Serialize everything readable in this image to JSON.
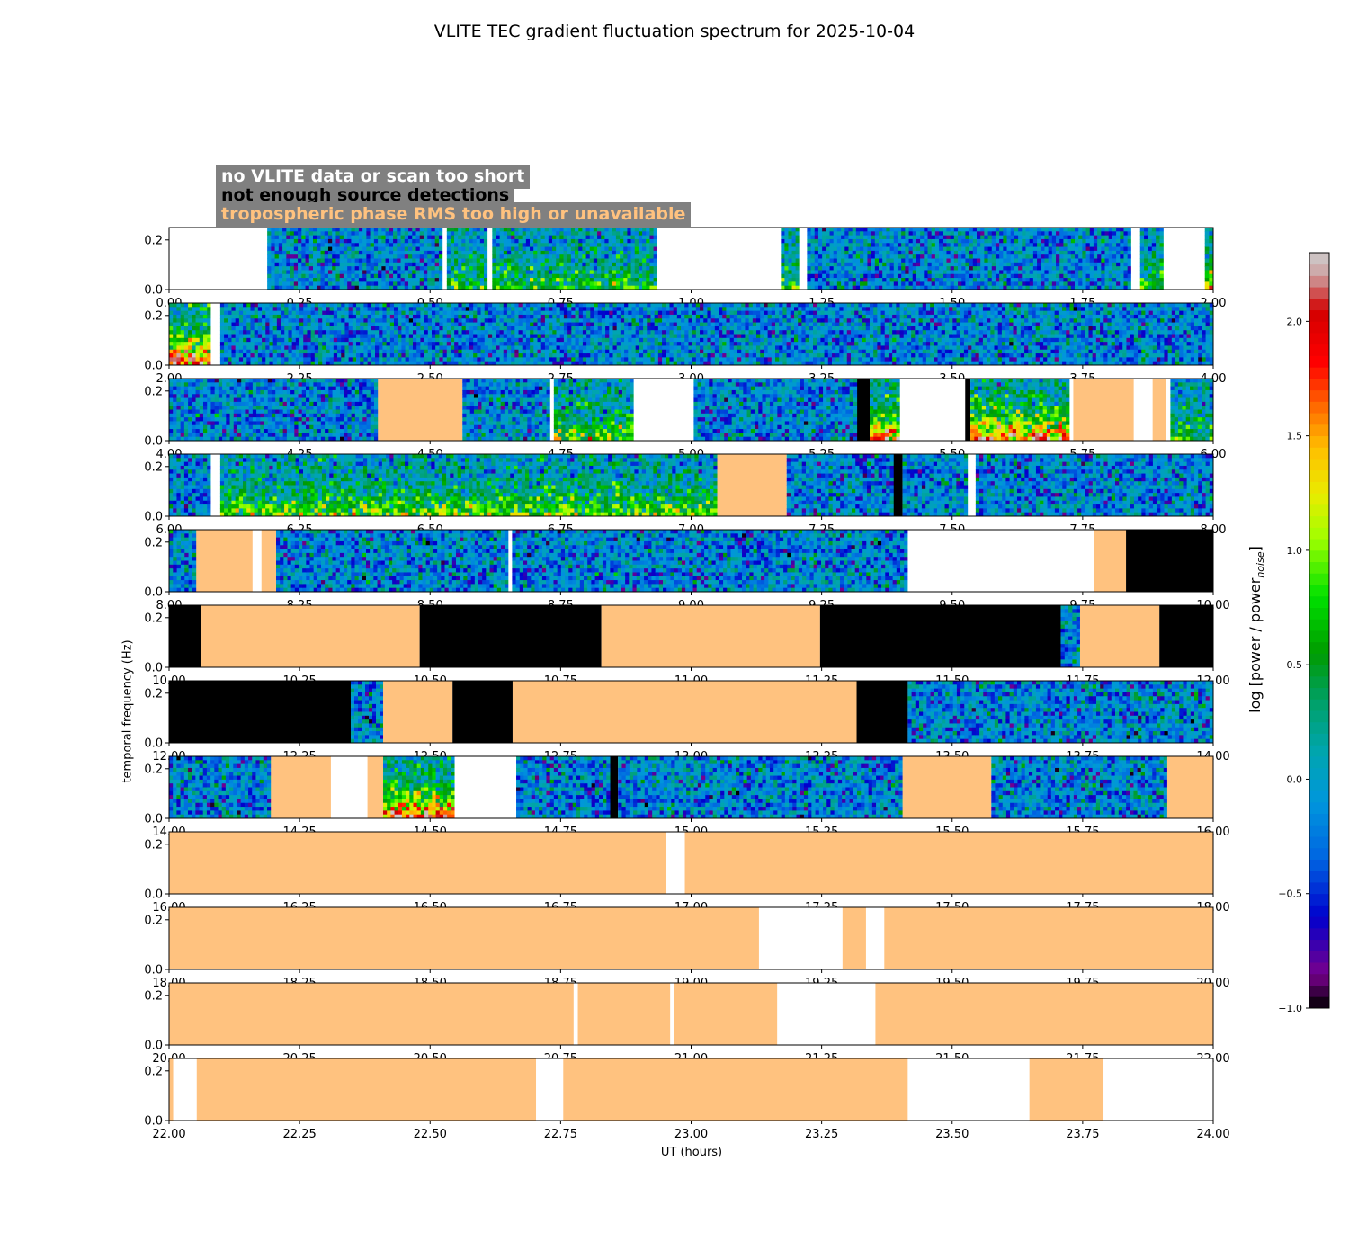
{
  "chart_data": {
    "type": "heatmap",
    "title": "VLITE TEC gradient fluctuation spectrum for 2025-10-04",
    "xlabel": "UT (hours)",
    "ylabel": "temporal frequency (Hz)",
    "colorbar": {
      "label_main": "log [power / power",
      "label_sub": "noise",
      "label_end": "]",
      "range": [
        -1.0,
        2.3
      ],
      "ticks": [
        -1.0,
        -0.5,
        0.0,
        0.5,
        1.0,
        1.5,
        2.0
      ],
      "tick_labels": [
        "−1.0",
        "−0.5",
        "0.0",
        "0.5",
        "1.0",
        "1.5",
        "2.0"
      ],
      "colormap": "nipy_spectral-like"
    },
    "legend": [
      {
        "label": "no VLITE data or scan too short",
        "color": "#ffffff",
        "meaning": "white"
      },
      {
        "label": "not enough source detections",
        "color": "#000000",
        "meaning": "black"
      },
      {
        "label": "tropospheric phase RMS too high or unavailable",
        "color": "#ffc27f",
        "meaning": "orange"
      }
    ],
    "colors": {
      "no_data": "#ffffff",
      "no_detections": "#000000",
      "tropo": "#ffc27f",
      "legend_bg": "#808080"
    },
    "ylim": [
      0.0,
      0.25
    ],
    "ytick_labels": [
      "0.0",
      "0.2"
    ],
    "ytick_values": [
      0.0,
      0.2
    ],
    "panels": [
      {
        "xlim": [
          0,
          2
        ],
        "xticks": [
          "0.00",
          "0.25",
          "0.50",
          "0.75",
          "1.00",
          "1.25",
          "1.50",
          "1.75",
          "2.00"
        ],
        "segments": [
          {
            "start": 0.0,
            "end": 0.188,
            "status": "nodata"
          },
          {
            "start": 0.188,
            "end": 0.524,
            "status": "data"
          },
          {
            "start": 0.524,
            "end": 0.532,
            "status": "nodata"
          },
          {
            "start": 0.532,
            "end": 0.61,
            "status": "data",
            "hot": 0.3
          },
          {
            "start": 0.61,
            "end": 0.619,
            "status": "nodata"
          },
          {
            "start": 0.619,
            "end": 0.935,
            "status": "data",
            "hot": 0.35
          },
          {
            "start": 0.935,
            "end": 1.172,
            "status": "nodata"
          },
          {
            "start": 1.172,
            "end": 1.207,
            "status": "data",
            "hot": 0.4
          },
          {
            "start": 1.207,
            "end": 1.222,
            "status": "nodata"
          },
          {
            "start": 1.222,
            "end": 1.843,
            "status": "data"
          },
          {
            "start": 1.843,
            "end": 1.86,
            "status": "nodata"
          },
          {
            "start": 1.86,
            "end": 1.905,
            "status": "data",
            "hot": 0.4
          },
          {
            "start": 1.905,
            "end": 1.984,
            "status": "nodata"
          },
          {
            "start": 1.984,
            "end": 2.0,
            "status": "data",
            "hot": 0.6
          }
        ]
      },
      {
        "xlim": [
          2,
          4
        ],
        "xticks": [
          "2.00",
          "2.25",
          "2.50",
          "2.75",
          "3.00",
          "3.25",
          "3.50",
          "3.75",
          "4.00"
        ],
        "segments": [
          {
            "start": 2.0,
            "end": 2.08,
            "status": "data",
            "hot": 0.9
          },
          {
            "start": 2.08,
            "end": 2.098,
            "status": "nodata"
          },
          {
            "start": 2.098,
            "end": 4.0,
            "status": "data"
          }
        ]
      },
      {
        "xlim": [
          4,
          6
        ],
        "xticks": [
          "4.00",
          "4.25",
          "4.50",
          "4.75",
          "5.00",
          "5.25",
          "5.50",
          "5.75",
          "6.00"
        ],
        "segments": [
          {
            "start": 4.0,
            "end": 4.4,
            "status": "data"
          },
          {
            "start": 4.4,
            "end": 4.562,
            "status": "tropo"
          },
          {
            "start": 4.562,
            "end": 4.73,
            "status": "data"
          },
          {
            "start": 4.73,
            "end": 4.737,
            "status": "nodata"
          },
          {
            "start": 4.737,
            "end": 4.89,
            "status": "data",
            "hot": 0.45
          },
          {
            "start": 4.89,
            "end": 5.005,
            "status": "nodata"
          },
          {
            "start": 5.005,
            "end": 5.318,
            "status": "data"
          },
          {
            "start": 5.318,
            "end": 5.342,
            "status": "nodetect"
          },
          {
            "start": 5.342,
            "end": 5.4,
            "status": "data",
            "hot": 0.8
          },
          {
            "start": 5.4,
            "end": 5.525,
            "status": "nodata"
          },
          {
            "start": 5.525,
            "end": 5.535,
            "status": "nodetect"
          },
          {
            "start": 5.535,
            "end": 5.725,
            "status": "data",
            "hot": 0.8
          },
          {
            "start": 5.725,
            "end": 5.732,
            "status": "nodata"
          },
          {
            "start": 5.732,
            "end": 5.848,
            "status": "tropo"
          },
          {
            "start": 5.848,
            "end": 5.884,
            "status": "nodata"
          },
          {
            "start": 5.884,
            "end": 5.91,
            "status": "tropo"
          },
          {
            "start": 5.91,
            "end": 5.918,
            "status": "nodata"
          },
          {
            "start": 5.918,
            "end": 6.0,
            "status": "data",
            "hot": 0.3
          }
        ]
      },
      {
        "xlim": [
          6,
          8
        ],
        "xticks": [
          "6.00",
          "6.25",
          "6.50",
          "6.75",
          "7.00",
          "7.25",
          "7.50",
          "7.75",
          "8.00"
        ],
        "segments": [
          {
            "start": 6.0,
            "end": 6.08,
            "status": "data"
          },
          {
            "start": 6.08,
            "end": 6.098,
            "status": "nodata"
          },
          {
            "start": 6.098,
            "end": 7.05,
            "status": "data",
            "hot": 0.45
          },
          {
            "start": 7.05,
            "end": 7.183,
            "status": "tropo"
          },
          {
            "start": 7.183,
            "end": 7.388,
            "status": "data"
          },
          {
            "start": 7.388,
            "end": 7.405,
            "status": "nodetect"
          },
          {
            "start": 7.405,
            "end": 7.53,
            "status": "data"
          },
          {
            "start": 7.53,
            "end": 7.545,
            "status": "nodata"
          },
          {
            "start": 7.545,
            "end": 8.0,
            "status": "data"
          }
        ]
      },
      {
        "xlim": [
          8,
          10
        ],
        "xticks": [
          "8.00",
          "8.25",
          "8.50",
          "8.75",
          "9.00",
          "9.25",
          "9.50",
          "9.75",
          "10.00"
        ],
        "segments": [
          {
            "start": 8.0,
            "end": 8.052,
            "status": "data"
          },
          {
            "start": 8.052,
            "end": 8.16,
            "status": "tropo"
          },
          {
            "start": 8.16,
            "end": 8.177,
            "status": "nodata"
          },
          {
            "start": 8.177,
            "end": 8.205,
            "status": "tropo"
          },
          {
            "start": 8.205,
            "end": 8.65,
            "status": "data"
          },
          {
            "start": 8.65,
            "end": 8.657,
            "status": "nodata"
          },
          {
            "start": 8.657,
            "end": 9.415,
            "status": "data"
          },
          {
            "start": 9.415,
            "end": 9.772,
            "status": "nodata"
          },
          {
            "start": 9.772,
            "end": 9.833,
            "status": "tropo"
          },
          {
            "start": 9.833,
            "end": 10.0,
            "status": "nodetect"
          }
        ]
      },
      {
        "xlim": [
          10,
          12
        ],
        "xticks": [
          "10.00",
          "10.25",
          "10.50",
          "10.75",
          "11.00",
          "11.25",
          "11.50",
          "11.75",
          "12.00"
        ],
        "segments": [
          {
            "start": 10.0,
            "end": 10.062,
            "status": "nodetect"
          },
          {
            "start": 10.062,
            "end": 10.48,
            "status": "tropo"
          },
          {
            "start": 10.48,
            "end": 10.828,
            "status": "nodetect"
          },
          {
            "start": 10.828,
            "end": 11.247,
            "status": "tropo"
          },
          {
            "start": 11.247,
            "end": 11.708,
            "status": "nodetect"
          },
          {
            "start": 11.708,
            "end": 11.745,
            "status": "data"
          },
          {
            "start": 11.745,
            "end": 11.897,
            "status": "tropo"
          },
          {
            "start": 11.897,
            "end": 12.0,
            "status": "nodetect"
          }
        ]
      },
      {
        "xlim": [
          12,
          14
        ],
        "xticks": [
          "12.00",
          "12.25",
          "12.50",
          "12.75",
          "13.00",
          "13.25",
          "13.50",
          "13.75",
          "14.00"
        ],
        "segments": [
          {
            "start": 12.0,
            "end": 12.348,
            "status": "nodetect"
          },
          {
            "start": 12.348,
            "end": 12.41,
            "status": "data"
          },
          {
            "start": 12.41,
            "end": 12.543,
            "status": "tropo"
          },
          {
            "start": 12.543,
            "end": 12.658,
            "status": "nodetect"
          },
          {
            "start": 12.658,
            "end": 13.317,
            "status": "tropo"
          },
          {
            "start": 13.317,
            "end": 13.415,
            "status": "nodetect"
          },
          {
            "start": 13.415,
            "end": 14.0,
            "status": "data"
          }
        ]
      },
      {
        "xlim": [
          14,
          16
        ],
        "xticks": [
          "14.00",
          "14.25",
          "14.50",
          "14.75",
          "15.00",
          "15.25",
          "15.50",
          "15.75",
          "16.00"
        ],
        "segments": [
          {
            "start": 14.0,
            "end": 14.195,
            "status": "data"
          },
          {
            "start": 14.195,
            "end": 14.31,
            "status": "tropo"
          },
          {
            "start": 14.31,
            "end": 14.38,
            "status": "nodata"
          },
          {
            "start": 14.38,
            "end": 14.41,
            "status": "tropo"
          },
          {
            "start": 14.41,
            "end": 14.547,
            "status": "data",
            "hot": 0.85
          },
          {
            "start": 14.547,
            "end": 14.665,
            "status": "nodata"
          },
          {
            "start": 14.665,
            "end": 14.845,
            "status": "data"
          },
          {
            "start": 14.845,
            "end": 14.86,
            "status": "nodetect"
          },
          {
            "start": 14.86,
            "end": 15.405,
            "status": "data"
          },
          {
            "start": 15.405,
            "end": 15.575,
            "status": "tropo"
          },
          {
            "start": 15.575,
            "end": 15.912,
            "status": "data"
          },
          {
            "start": 15.912,
            "end": 16.0,
            "status": "tropo"
          }
        ]
      },
      {
        "xlim": [
          16,
          18
        ],
        "xticks": [
          "16.00",
          "16.25",
          "16.50",
          "16.75",
          "17.00",
          "17.25",
          "17.50",
          "17.75",
          "18.00"
        ],
        "segments": [
          {
            "start": 16.0,
            "end": 16.952,
            "status": "tropo"
          },
          {
            "start": 16.952,
            "end": 16.988,
            "status": "nodata"
          },
          {
            "start": 16.988,
            "end": 18.0,
            "status": "tropo"
          }
        ]
      },
      {
        "xlim": [
          18,
          20
        ],
        "xticks": [
          "18.00",
          "18.25",
          "18.50",
          "18.75",
          "19.00",
          "19.25",
          "19.50",
          "19.75",
          "20.00"
        ],
        "segments": [
          {
            "start": 18.0,
            "end": 19.13,
            "status": "tropo"
          },
          {
            "start": 19.13,
            "end": 19.29,
            "status": "nodata"
          },
          {
            "start": 19.29,
            "end": 19.335,
            "status": "tropo"
          },
          {
            "start": 19.335,
            "end": 19.37,
            "status": "nodata"
          },
          {
            "start": 19.37,
            "end": 20.0,
            "status": "tropo"
          }
        ]
      },
      {
        "xlim": [
          20,
          22
        ],
        "xticks": [
          "20.00",
          "20.25",
          "20.50",
          "20.75",
          "21.00",
          "21.25",
          "21.50",
          "21.75",
          "22.00"
        ],
        "segments": [
          {
            "start": 20.0,
            "end": 20.775,
            "status": "tropo"
          },
          {
            "start": 20.775,
            "end": 20.783,
            "status": "nodata"
          },
          {
            "start": 20.783,
            "end": 20.96,
            "status": "tropo"
          },
          {
            "start": 20.96,
            "end": 20.968,
            "status": "nodata"
          },
          {
            "start": 20.968,
            "end": 21.165,
            "status": "tropo"
          },
          {
            "start": 21.165,
            "end": 21.353,
            "status": "nodata"
          },
          {
            "start": 21.353,
            "end": 22.0,
            "status": "tropo"
          }
        ]
      },
      {
        "xlim": [
          22,
          24
        ],
        "xticks": [
          "22.00",
          "22.25",
          "22.50",
          "22.75",
          "23.00",
          "23.25",
          "23.50",
          "23.75",
          "24.00"
        ],
        "segments": [
          {
            "start": 22.0,
            "end": 22.008,
            "status": "tropo"
          },
          {
            "start": 22.008,
            "end": 22.053,
            "status": "nodata"
          },
          {
            "start": 22.053,
            "end": 22.703,
            "status": "tropo"
          },
          {
            "start": 22.703,
            "end": 22.755,
            "status": "nodata"
          },
          {
            "start": 22.755,
            "end": 23.415,
            "status": "tropo"
          },
          {
            "start": 23.415,
            "end": 23.648,
            "status": "nodata"
          },
          {
            "start": 23.648,
            "end": 23.79,
            "status": "tropo"
          },
          {
            "start": 23.79,
            "end": 24.0,
            "status": "nodata"
          }
        ]
      }
    ]
  }
}
